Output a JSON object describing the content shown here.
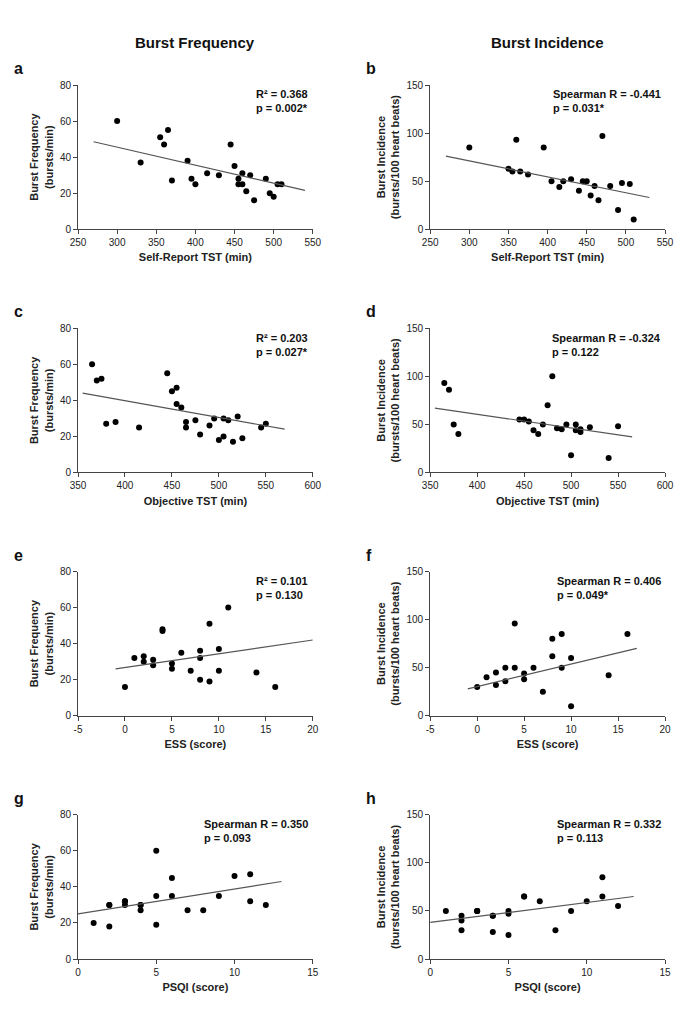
{
  "chart_data": [
    {
      "type": "scatter",
      "title": "Burst Frequency",
      "label": "a",
      "xlabel": "Self-Report TST (min)",
      "ylabel": "Burst Frequency\n(bursts/min)",
      "annotation": "R² = 0.368\np = 0.002*",
      "xlim": [
        250,
        550
      ],
      "ylim": [
        0,
        80
      ],
      "xticks": [
        250,
        300,
        350,
        400,
        450,
        500,
        550
      ],
      "yticks": [
        0,
        20,
        40,
        60,
        80
      ],
      "grid": false,
      "series": [
        {
          "type": "scatter",
          "color": "#000000",
          "x": [
            300,
            330,
            355,
            360,
            365,
            370,
            390,
            395,
            400,
            415,
            430,
            445,
            450,
            455,
            455,
            460,
            460,
            465,
            470,
            475,
            490,
            495,
            500,
            505,
            510
          ],
          "values": [
            60,
            37,
            51,
            47,
            55,
            27,
            38,
            28,
            25,
            31,
            30,
            47,
            35,
            28,
            25,
            31,
            25,
            21,
            30,
            16,
            28,
            20,
            18,
            25,
            25
          ]
        },
        {
          "type": "line",
          "color": "#555555",
          "x": [
            270,
            540
          ],
          "values": [
            48.5,
            21.5
          ]
        }
      ]
    },
    {
      "type": "scatter",
      "title": "Burst Incidence",
      "label": "b",
      "xlabel": "Self-Report TST (min)",
      "ylabel": "Burst Incidence\n(bursts/100 heart beats)",
      "annotation": "Spearman R = -0.441\np = 0.031*",
      "xlim": [
        250,
        550
      ],
      "ylim": [
        0,
        150
      ],
      "xticks": [
        250,
        300,
        350,
        400,
        450,
        500,
        550
      ],
      "yticks": [
        0,
        50,
        100,
        150
      ],
      "grid": false,
      "series": [
        {
          "type": "scatter",
          "color": "#000000",
          "x": [
            300,
            350,
            355,
            360,
            365,
            375,
            395,
            405,
            415,
            420,
            430,
            440,
            445,
            450,
            455,
            460,
            465,
            470,
            480,
            490,
            495,
            505,
            510
          ],
          "values": [
            85,
            63,
            60,
            93,
            60,
            57,
            85,
            50,
            44,
            50,
            52,
            40,
            50,
            50,
            35,
            45,
            30,
            97,
            45,
            20,
            48,
            47,
            10
          ]
        },
        {
          "type": "line",
          "color": "#555555",
          "x": [
            270,
            530
          ],
          "values": [
            76,
            33
          ]
        }
      ]
    },
    {
      "type": "scatter",
      "label": "c",
      "xlabel": "Objective TST (min)",
      "ylabel": "Burst Frequency\n(bursts/min)",
      "annotation": "R² = 0.203\np = 0.027*",
      "xlim": [
        350,
        600
      ],
      "ylim": [
        0,
        80
      ],
      "xticks": [
        350,
        400,
        450,
        500,
        550,
        600
      ],
      "yticks": [
        0,
        20,
        40,
        60,
        80
      ],
      "grid": false,
      "series": [
        {
          "type": "scatter",
          "color": "#000000",
          "x": [
            365,
            370,
            375,
            380,
            390,
            415,
            445,
            450,
            455,
            455,
            460,
            465,
            465,
            475,
            480,
            490,
            495,
            500,
            505,
            505,
            510,
            515,
            520,
            525,
            545,
            550
          ],
          "values": [
            60,
            51,
            52,
            27,
            28,
            25,
            55,
            45,
            47,
            38,
            36,
            25,
            28,
            29,
            21,
            26,
            30,
            18,
            30,
            20,
            29,
            17,
            31,
            19,
            25,
            27
          ]
        },
        {
          "type": "line",
          "color": "#555555",
          "x": [
            355,
            570
          ],
          "values": [
            44,
            24
          ]
        }
      ]
    },
    {
      "type": "scatter",
      "label": "d",
      "xlabel": "Objective TST (min)",
      "ylabel": "Burst Incidence\n(bursts/100 heart beats)",
      "annotation": "Spearman R = -0.324\np = 0.122",
      "xlim": [
        350,
        600
      ],
      "ylim": [
        0,
        150
      ],
      "xticks": [
        350,
        400,
        450,
        500,
        550,
        600
      ],
      "yticks": [
        0,
        50,
        100,
        150
      ],
      "grid": false,
      "series": [
        {
          "type": "scatter",
          "color": "#000000",
          "x": [
            365,
            370,
            375,
            380,
            445,
            450,
            455,
            460,
            465,
            470,
            475,
            480,
            485,
            490,
            495,
            500,
            505,
            505,
            510,
            510,
            520,
            540,
            550
          ],
          "values": [
            93,
            86,
            50,
            40,
            55,
            55,
            53,
            44,
            40,
            50,
            70,
            100,
            46,
            45,
            50,
            18,
            44,
            50,
            45,
            42,
            47,
            15,
            48
          ]
        },
        {
          "type": "line",
          "color": "#555555",
          "x": [
            355,
            565
          ],
          "values": [
            67,
            37
          ]
        }
      ]
    },
    {
      "type": "scatter",
      "label": "e",
      "xlabel": "ESS (score)",
      "ylabel": "Burst Frequency\n(bursts/min)",
      "annotation": "R² = 0.101\np = 0.130",
      "xlim": [
        -5,
        20
      ],
      "ylim": [
        0,
        80
      ],
      "xticks": [
        -5,
        0,
        5,
        10,
        15,
        20
      ],
      "yticks": [
        0,
        20,
        40,
        60,
        80
      ],
      "grid": false,
      "series": [
        {
          "type": "scatter",
          "color": "#000000",
          "x": [
            0,
            1,
            2,
            2,
            3,
            3,
            4,
            4,
            5,
            5,
            6,
            7,
            8,
            8,
            8,
            9,
            9,
            10,
            10,
            11,
            14,
            16
          ],
          "values": [
            16,
            32,
            33,
            30,
            31,
            28,
            47,
            48,
            29,
            26,
            35,
            25,
            32,
            20,
            36,
            19,
            51,
            37,
            25,
            60,
            24,
            16
          ]
        },
        {
          "type": "line",
          "color": "#555555",
          "x": [
            -1,
            20
          ],
          "values": [
            26,
            42
          ]
        }
      ]
    },
    {
      "type": "scatter",
      "label": "f",
      "xlabel": "ESS (score)",
      "ylabel": "Burst Incidence\n(bursts/100 heart beats)",
      "annotation": "Spearman R = 0.406\np = 0.049*",
      "xlim": [
        -5,
        20
      ],
      "ylim": [
        0,
        150
      ],
      "xticks": [
        -5,
        0,
        5,
        10,
        15,
        20
      ],
      "yticks": [
        0,
        50,
        100,
        150
      ],
      "grid": false,
      "series": [
        {
          "type": "scatter",
          "color": "#000000",
          "x": [
            0,
            1,
            2,
            2,
            3,
            3,
            4,
            4,
            5,
            5,
            6,
            7,
            8,
            8,
            9,
            9,
            10,
            10,
            14,
            16
          ],
          "values": [
            30,
            40,
            45,
            32,
            50,
            36,
            96,
            50,
            44,
            38,
            50,
            25,
            80,
            62,
            85,
            50,
            60,
            10,
            42,
            85
          ]
        },
        {
          "type": "line",
          "color": "#555555",
          "x": [
            -1,
            17
          ],
          "values": [
            28,
            70
          ]
        }
      ]
    },
    {
      "type": "scatter",
      "label": "g",
      "xlabel": "PSQI (score)",
      "ylabel": "Burst Frequency\n(bursts/min)",
      "annotation": "Spearman R = 0.350\np = 0.093",
      "xlim": [
        0,
        15
      ],
      "ylim": [
        0,
        80
      ],
      "xticks": [
        0,
        5,
        10,
        15
      ],
      "yticks": [
        0,
        20,
        40,
        60,
        80
      ],
      "grid": false,
      "series": [
        {
          "type": "scatter",
          "color": "#000000",
          "x": [
            1,
            2,
            2,
            2,
            3,
            3,
            3,
            4,
            4,
            4,
            5,
            5,
            5,
            6,
            6,
            7,
            8,
            9,
            10,
            11,
            11,
            12
          ],
          "values": [
            20,
            30,
            30,
            18,
            32,
            32,
            30,
            30,
            30,
            27,
            19,
            35,
            60,
            35,
            45,
            27,
            27,
            35,
            46,
            32,
            47,
            30
          ]
        },
        {
          "type": "line",
          "color": "#555555",
          "x": [
            0,
            13
          ],
          "values": [
            25,
            43
          ]
        }
      ]
    },
    {
      "type": "scatter",
      "label": "h",
      "xlabel": "PSQI (score)",
      "ylabel": "Burst Incidence\n(bursts/100 heart beats)",
      "annotation": "Spearman R = 0.332\np = 0.113",
      "xlim": [
        0,
        15
      ],
      "ylim": [
        0,
        150
      ],
      "xticks": [
        0,
        5,
        10,
        15
      ],
      "yticks": [
        0,
        50,
        100,
        150
      ],
      "grid": false,
      "series": [
        {
          "type": "scatter",
          "color": "#000000",
          "x": [
            1,
            2,
            2,
            2,
            3,
            3,
            3,
            4,
            4,
            4,
            5,
            5,
            5,
            6,
            6,
            7,
            8,
            9,
            10,
            11,
            11,
            12
          ],
          "values": [
            50,
            40,
            45,
            30,
            50,
            50,
            50,
            45,
            45,
            28,
            47,
            50,
            25,
            65,
            65,
            60,
            30,
            50,
            60,
            85,
            65,
            55
          ]
        },
        {
          "type": "line",
          "color": "#555555",
          "x": [
            0,
            13
          ],
          "values": [
            38,
            65
          ]
        }
      ]
    }
  ]
}
